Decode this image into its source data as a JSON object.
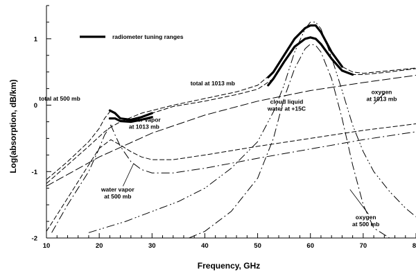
{
  "chart_data": {
    "type": "line",
    "xlabel": "Frequency, GHz",
    "ylabel": "Log(absorption, dB/km)",
    "xlim": [
      10,
      80
    ],
    "ylim": [
      -2,
      1.5
    ],
    "x_ticks": [
      "10",
      "20",
      "30",
      "40",
      "50",
      "60",
      "70",
      "80"
    ],
    "y_ticks": [
      "-2",
      "-1",
      "0",
      "1"
    ],
    "grid": false,
    "legend": {
      "label": "radiometer tuning ranges",
      "position": "top-left"
    },
    "series": [
      {
        "name": "total at 1013 mb",
        "style": "dashed",
        "x": [
          10,
          14,
          18,
          21,
          22.2,
          24,
          28,
          34,
          40,
          46,
          50,
          53,
          55,
          57,
          59,
          60,
          61,
          62,
          64,
          66,
          68,
          70,
          75,
          80
        ],
        "y": [
          -1.18,
          -0.9,
          -0.62,
          -0.4,
          -0.33,
          -0.25,
          -0.12,
          0.0,
          0.1,
          0.2,
          0.3,
          0.5,
          0.75,
          1.0,
          1.16,
          1.2,
          1.2,
          1.1,
          0.8,
          0.58,
          0.5,
          0.48,
          0.52,
          0.56
        ]
      },
      {
        "name": "total at 500 mb",
        "style": "dashed",
        "x": [
          10,
          14,
          18,
          20,
          21,
          22.2,
          23,
          24,
          26,
          28,
          30,
          34,
          40,
          46,
          50,
          53,
          55,
          57,
          59,
          60,
          61,
          62,
          64,
          66,
          68,
          70,
          75,
          80
        ],
        "y": [
          -1.12,
          -0.85,
          -0.55,
          -0.35,
          -0.2,
          -0.08,
          -0.12,
          -0.2,
          -0.22,
          -0.18,
          -0.12,
          -0.02,
          0.06,
          0.16,
          0.24,
          0.4,
          0.65,
          0.88,
          1.0,
          1.02,
          1.0,
          0.92,
          0.7,
          0.52,
          0.46,
          0.46,
          0.5,
          0.55
        ]
      },
      {
        "name": "cloud liquid water at +15C",
        "style": "dashed-long",
        "x": [
          10,
          20,
          30,
          40,
          50,
          60,
          70,
          80
        ],
        "y": [
          -1.22,
          -0.78,
          -0.42,
          -0.15,
          0.06,
          0.22,
          0.34,
          0.45
        ]
      },
      {
        "name": "water vapor at 1013 mb",
        "style": "dashed",
        "x": [
          10,
          14,
          18,
          20,
          22.2,
          24,
          26,
          28,
          30,
          34,
          40,
          50,
          60,
          70,
          80
        ],
        "y": [
          -1.9,
          -1.4,
          -0.9,
          -0.65,
          -0.52,
          -0.6,
          -0.7,
          -0.78,
          -0.82,
          -0.82,
          -0.75,
          -0.62,
          -0.5,
          -0.38,
          -0.28
        ]
      },
      {
        "name": "water vapor at 500 mb",
        "style": "dash-dot",
        "x": [
          11,
          14,
          18,
          20,
          21,
          22.2,
          23,
          24,
          26,
          28,
          30,
          34,
          40,
          50,
          60,
          70,
          80
        ],
        "y": [
          -1.92,
          -1.5,
          -1.0,
          -0.65,
          -0.45,
          -0.3,
          -0.45,
          -0.62,
          -0.85,
          -0.97,
          -1.02,
          -1.02,
          -0.95,
          -0.8,
          -0.66,
          -0.52,
          -0.4
        ]
      },
      {
        "name": "oxygen at 1013 mb",
        "style": "dash-dot-dot",
        "x": [
          18,
          25,
          30,
          35,
          40,
          45,
          50,
          53,
          55,
          57,
          59,
          60,
          61,
          62,
          64,
          66,
          68,
          70,
          72,
          75,
          78,
          80
        ],
        "y": [
          -1.92,
          -1.75,
          -1.6,
          -1.45,
          -1.25,
          -0.95,
          -0.55,
          -0.1,
          0.3,
          0.8,
          1.15,
          1.25,
          1.25,
          1.15,
          0.72,
          0.22,
          -0.3,
          -0.7,
          -1.0,
          -1.3,
          -1.55,
          -1.68
        ]
      },
      {
        "name": "oxygen at 500 mb",
        "style": "dash-dot",
        "x": [
          37,
          40,
          45,
          50,
          53,
          55,
          57,
          59,
          60,
          61,
          62,
          64,
          66,
          68,
          70,
          72,
          75
        ],
        "y": [
          -2.0,
          -1.9,
          -1.6,
          -1.1,
          -0.5,
          0.1,
          0.55,
          0.85,
          0.92,
          0.9,
          0.8,
          0.4,
          -0.2,
          -0.9,
          -1.5,
          -1.85,
          -2.0
        ]
      }
    ],
    "tuning_ranges": [
      {
        "x": [
          22,
          23,
          24,
          26,
          28,
          30
        ],
        "y": [
          -0.08,
          -0.12,
          -0.2,
          -0.22,
          -0.18,
          -0.12
        ]
      },
      {
        "x": [
          22,
          23,
          24,
          26,
          28,
          30
        ],
        "y": [
          -0.2,
          -0.2,
          -0.24,
          -0.25,
          -0.22,
          -0.18
        ]
      },
      {
        "x": [
          52,
          53,
          55,
          57,
          59,
          60,
          61,
          62,
          64,
          66
        ],
        "y": [
          0.42,
          0.5,
          0.75,
          1.0,
          1.16,
          1.2,
          1.2,
          1.1,
          0.8,
          0.58
        ]
      },
      {
        "x": [
          52,
          53,
          55,
          57,
          59,
          60,
          61,
          62,
          64,
          66,
          68
        ],
        "y": [
          0.3,
          0.4,
          0.65,
          0.88,
          1.0,
          1.02,
          1.0,
          0.92,
          0.7,
          0.52,
          0.46
        ]
      }
    ],
    "annotations": [
      {
        "lines": [
          "total at 1013 mb"
        ],
        "x": 41.5,
        "y": 0.3
      },
      {
        "lines": [
          "total at 500 mb"
        ],
        "x": 12.5,
        "y": 0.07
      },
      {
        "lines": [
          "water vapor",
          "at 1013 mb"
        ],
        "x": 28.5,
        "y": -0.25
      },
      {
        "lines": [
          "water vapor",
          "at 500 mb"
        ],
        "x": 23.5,
        "y": -1.3
      },
      {
        "lines": [
          "cloud liquid",
          "water at +15C"
        ],
        "x": 55.5,
        "y": 0.02
      },
      {
        "lines": [
          "oxygen",
          "at 1013 mb"
        ],
        "x": 73.5,
        "y": 0.17
      },
      {
        "lines": [
          "oxygen",
          "at 500 mb"
        ],
        "x": 70.5,
        "y": -1.72
      }
    ]
  }
}
